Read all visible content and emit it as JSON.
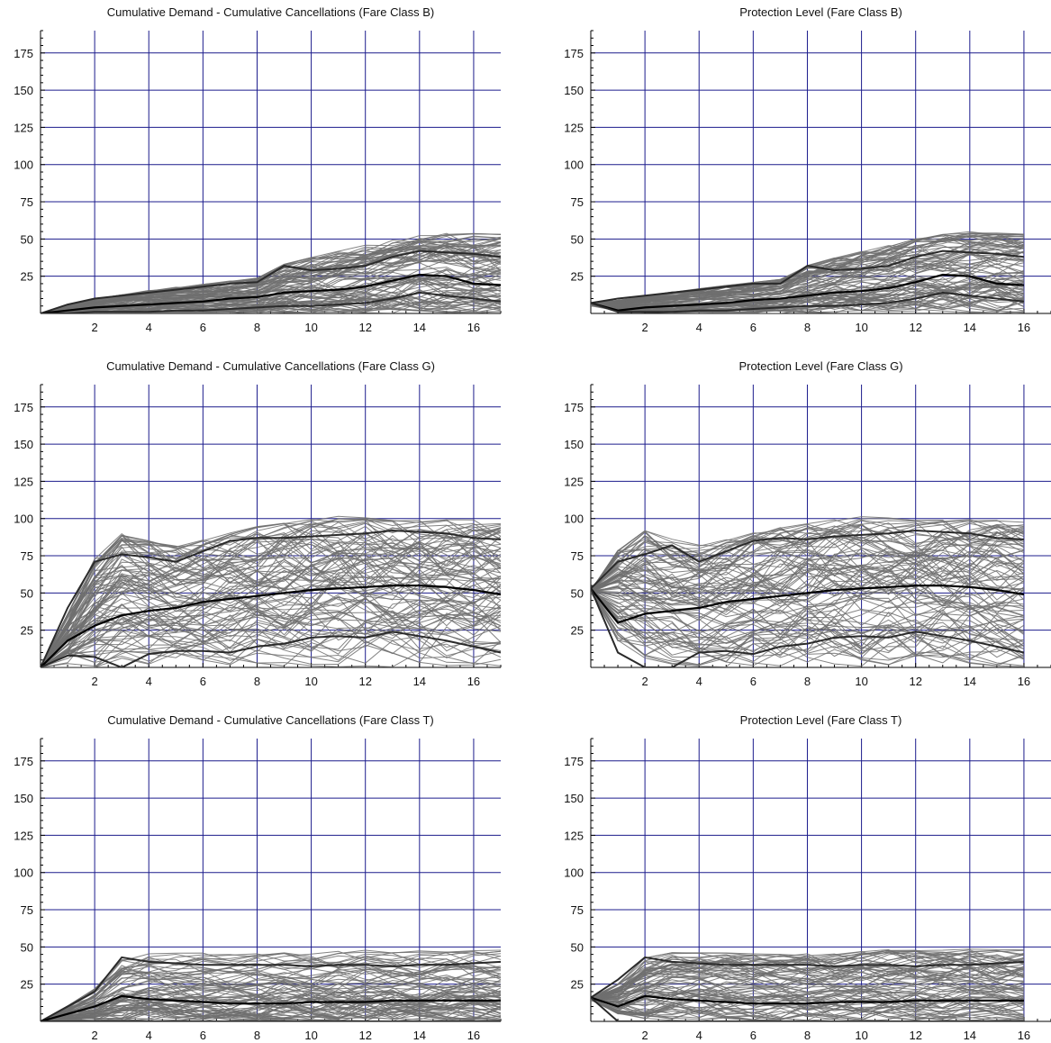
{
  "figure": {
    "panels": [
      {
        "id": "cum-B",
        "title": "Cumulative Demand - Cumulative Cancellations  (Fare Class  B)"
      },
      {
        "id": "prot-B",
        "title": "Protection Level  (Fare Class  B)"
      },
      {
        "id": "cum-G",
        "title": "Cumulative Demand - Cumulative Cancellations  (Fare Class  G)"
      },
      {
        "id": "prot-G",
        "title": "Protection Level  (Fare Class  G)"
      },
      {
        "id": "cum-T",
        "title": "Cumulative Demand - Cumulative Cancellations  (Fare Class  T)"
      },
      {
        "id": "prot-T",
        "title": "Protection Level  (Fare Class  T)"
      }
    ]
  },
  "chart_data": [
    {
      "type": "line",
      "title": "Cumulative Demand - Cumulative Cancellations  (Fare Class  B)",
      "xlabel": "",
      "ylabel": "",
      "xlim": [
        0,
        17
      ],
      "ylim": [
        0,
        190
      ],
      "xticks": [
        2,
        4,
        6,
        8,
        10,
        12,
        14,
        16
      ],
      "yticks": [
        25,
        50,
        75,
        100,
        125,
        150,
        175
      ],
      "grid": true,
      "x": [
        0,
        1,
        2,
        3,
        4,
        5,
        6,
        7,
        8,
        9,
        10,
        11,
        12,
        13,
        14,
        15,
        16,
        17
      ],
      "series": [
        {
          "role": "upper",
          "values": [
            0,
            6,
            10,
            12,
            14,
            16,
            18,
            20,
            21,
            32,
            29,
            30,
            32,
            38,
            42,
            41,
            40,
            38
          ]
        },
        {
          "role": "mean",
          "values": [
            0,
            2,
            4,
            5,
            6,
            7,
            8,
            10,
            11,
            14,
            15,
            16,
            18,
            22,
            26,
            25,
            20,
            19
          ]
        },
        {
          "role": "lower",
          "values": [
            0,
            0,
            1,
            1,
            1,
            2,
            2,
            3,
            4,
            5,
            5,
            6,
            7,
            10,
            14,
            12,
            10,
            8
          ]
        }
      ],
      "background_band": {
        "upper": [
          0,
          8,
          12,
          14,
          17,
          19,
          21,
          23,
          25,
          38,
          40,
          44,
          48,
          53,
          55,
          56,
          54,
          53
        ],
        "lower": [
          0,
          0,
          0,
          0,
          0,
          0,
          0,
          0,
          0,
          0,
          0,
          0,
          0,
          0,
          1,
          0,
          0,
          0
        ],
        "count": 90
      }
    },
    {
      "type": "line",
      "title": "Protection Level  (Fare Class  B)",
      "xlabel": "",
      "ylabel": "",
      "xlim": [
        0,
        17
      ],
      "ylim": [
        0,
        190
      ],
      "xticks": [
        2,
        4,
        6,
        8,
        10,
        12,
        14,
        16
      ],
      "yticks": [
        25,
        50,
        75,
        100,
        125,
        150,
        175
      ],
      "grid": true,
      "x": [
        0,
        1,
        2,
        3,
        4,
        5,
        6,
        7,
        8,
        9,
        10,
        11,
        12,
        13,
        14,
        15,
        16
      ],
      "series": [
        {
          "role": "upper",
          "values": [
            7,
            10,
            12,
            14,
            16,
            18,
            20,
            20,
            32,
            29,
            30,
            32,
            38,
            42,
            41,
            40,
            38
          ]
        },
        {
          "role": "mean",
          "values": [
            7,
            2,
            4,
            5,
            6,
            7,
            9,
            10,
            12,
            14,
            15,
            17,
            21,
            26,
            25,
            20,
            19
          ]
        },
        {
          "role": "lower",
          "values": [
            7,
            1,
            1,
            1,
            2,
            2,
            3,
            4,
            5,
            5,
            6,
            7,
            10,
            14,
            12,
            10,
            8
          ]
        }
      ],
      "background_band": {
        "upper": [
          7,
          10,
          13,
          16,
          18,
          20,
          22,
          24,
          38,
          40,
          44,
          48,
          53,
          55,
          56,
          54,
          53
        ],
        "lower": [
          5,
          0,
          0,
          0,
          0,
          0,
          0,
          0,
          0,
          0,
          0,
          0,
          0,
          1,
          0,
          0,
          0
        ],
        "count": 90
      }
    },
    {
      "type": "line",
      "title": "Cumulative Demand - Cumulative Cancellations  (Fare Class  G)",
      "xlabel": "",
      "ylabel": "",
      "xlim": [
        0,
        17
      ],
      "ylim": [
        0,
        190
      ],
      "xticks": [
        2,
        4,
        6,
        8,
        10,
        12,
        14,
        16
      ],
      "yticks": [
        25,
        50,
        75,
        100,
        125,
        150,
        175
      ],
      "grid": true,
      "x": [
        0,
        1,
        2,
        3,
        4,
        5,
        6,
        7,
        8,
        9,
        10,
        11,
        12,
        13,
        14,
        15,
        16,
        17
      ],
      "series": [
        {
          "role": "upper",
          "values": [
            0,
            40,
            71,
            76,
            74,
            71,
            78,
            85,
            87,
            87,
            88,
            89,
            90,
            92,
            91,
            90,
            87,
            86
          ]
        },
        {
          "role": "mean",
          "values": [
            0,
            18,
            28,
            35,
            38,
            40,
            44,
            46,
            48,
            50,
            52,
            53,
            54,
            55,
            55,
            54,
            52,
            49
          ]
        },
        {
          "role": "lower",
          "values": [
            0,
            8,
            7,
            0,
            9,
            11,
            11,
            10,
            14,
            16,
            20,
            21,
            20,
            24,
            21,
            18,
            14,
            10
          ]
        }
      ],
      "background_band": {
        "upper": [
          0,
          55,
          93,
          99,
          83,
          80,
          88,
          93,
          97,
          98,
          101,
          103,
          100,
          98,
          99,
          100,
          99,
          97
        ],
        "lower": [
          0,
          0,
          0,
          0,
          0,
          0,
          0,
          0,
          0,
          0,
          0,
          0,
          0,
          0,
          0,
          0,
          0,
          0
        ],
        "count": 90
      }
    },
    {
      "type": "line",
      "title": "Protection Level  (Fare Class  G)",
      "xlabel": "",
      "ylabel": "",
      "xlim": [
        0,
        17
      ],
      "ylim": [
        0,
        190
      ],
      "xticks": [
        2,
        4,
        6,
        8,
        10,
        12,
        14,
        16
      ],
      "yticks": [
        25,
        50,
        75,
        100,
        125,
        150,
        175
      ],
      "grid": true,
      "x": [
        0,
        1,
        2,
        3,
        4,
        5,
        6,
        7,
        8,
        9,
        10,
        11,
        12,
        13,
        14,
        15,
        16
      ],
      "series": [
        {
          "role": "upper",
          "values": [
            53,
            71,
            76,
            82,
            71,
            78,
            85,
            87,
            86,
            88,
            89,
            90,
            92,
            91,
            90,
            87,
            86
          ]
        },
        {
          "role": "mean",
          "values": [
            53,
            30,
            36,
            38,
            40,
            44,
            46,
            48,
            50,
            52,
            53,
            54,
            55,
            55,
            54,
            52,
            49
          ]
        },
        {
          "role": "lower",
          "values": [
            53,
            10,
            0,
            0,
            10,
            11,
            9,
            14,
            16,
            20,
            21,
            20,
            24,
            21,
            18,
            14,
            10
          ]
        }
      ],
      "background_band": {
        "upper": [
          53,
          93,
          99,
          83,
          80,
          88,
          93,
          97,
          98,
          101,
          103,
          100,
          98,
          99,
          100,
          99,
          97
        ],
        "lower": [
          50,
          0,
          0,
          0,
          0,
          0,
          0,
          0,
          0,
          0,
          0,
          0,
          0,
          0,
          0,
          0,
          0
        ],
        "count": 90
      }
    },
    {
      "type": "line",
      "title": "Cumulative Demand - Cumulative Cancellations  (Fare Class  T)",
      "xlabel": "",
      "ylabel": "",
      "xlim": [
        0,
        17
      ],
      "ylim": [
        0,
        190
      ],
      "xticks": [
        2,
        4,
        6,
        8,
        10,
        12,
        14,
        16
      ],
      "yticks": [
        25,
        50,
        75,
        100,
        125,
        150,
        175
      ],
      "grid": true,
      "x": [
        0,
        1,
        2,
        3,
        4,
        5,
        6,
        7,
        8,
        9,
        10,
        11,
        12,
        13,
        14,
        15,
        16,
        17
      ],
      "series": [
        {
          "role": "upper",
          "values": [
            0,
            10,
            20,
            43,
            40,
            39,
            38,
            38,
            38,
            38,
            37,
            38,
            38,
            37,
            38,
            38,
            39,
            40
          ]
        },
        {
          "role": "mean",
          "values": [
            0,
            5,
            10,
            17,
            15,
            14,
            13,
            12,
            12,
            12,
            13,
            13,
            13,
            14,
            14,
            14,
            14,
            14
          ]
        },
        {
          "role": "lower",
          "values": [
            0,
            0,
            0,
            0,
            0,
            0,
            0,
            0,
            0,
            0,
            0,
            0,
            0,
            0,
            0,
            0,
            0,
            0
          ]
        }
      ],
      "background_band": {
        "upper": [
          0,
          16,
          28,
          52,
          48,
          46,
          46,
          45,
          46,
          47,
          46,
          48,
          49,
          48,
          48,
          49,
          48,
          48
        ],
        "lower": [
          0,
          0,
          0,
          0,
          0,
          0,
          0,
          0,
          0,
          0,
          0,
          0,
          0,
          0,
          0,
          0,
          0,
          0
        ],
        "count": 80
      }
    },
    {
      "type": "line",
      "title": "Protection Level  (Fare Class  T)",
      "xlabel": "",
      "ylabel": "",
      "xlim": [
        0,
        17
      ],
      "ylim": [
        0,
        190
      ],
      "xticks": [
        2,
        4,
        6,
        8,
        10,
        12,
        14,
        16
      ],
      "yticks": [
        25,
        50,
        75,
        100,
        125,
        150,
        175
      ],
      "grid": true,
      "x": [
        0,
        1,
        2,
        3,
        4,
        5,
        6,
        7,
        8,
        9,
        10,
        11,
        12,
        13,
        14,
        15,
        16
      ],
      "series": [
        {
          "role": "upper",
          "values": [
            16,
            28,
            43,
            40,
            39,
            38,
            38,
            38,
            38,
            37,
            38,
            38,
            37,
            38,
            38,
            39,
            40
          ]
        },
        {
          "role": "mean",
          "values": [
            16,
            10,
            17,
            15,
            14,
            13,
            12,
            12,
            12,
            13,
            13,
            13,
            14,
            14,
            14,
            14,
            14
          ]
        },
        {
          "role": "lower",
          "values": [
            16,
            0,
            0,
            0,
            0,
            0,
            0,
            0,
            0,
            0,
            0,
            0,
            0,
            0,
            0,
            0,
            0
          ]
        }
      ],
      "background_band": {
        "upper": [
          16,
          30,
          52,
          48,
          46,
          46,
          45,
          46,
          47,
          46,
          48,
          49,
          48,
          48,
          49,
          48,
          48
        ],
        "lower": [
          14,
          0,
          0,
          0,
          0,
          0,
          0,
          0,
          0,
          0,
          0,
          0,
          0,
          0,
          0,
          0,
          0
        ],
        "count": 80
      }
    }
  ]
}
